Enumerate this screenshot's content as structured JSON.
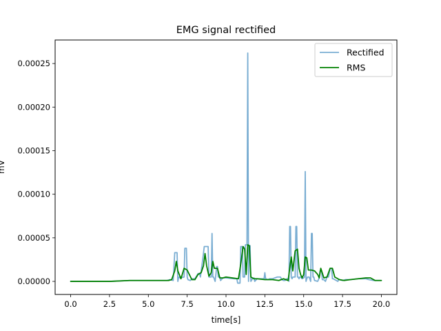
{
  "chart_data": {
    "type": "line",
    "title": "EMG signal rectified",
    "xlabel": "time[s]",
    "ylabel": "mV",
    "xlim": [
      -1.0,
      21.0
    ],
    "ylim": [
      -1.5e-05,
      0.000277
    ],
    "xticks": [
      0.0,
      2.5,
      5.0,
      7.5,
      10.0,
      12.5,
      15.0,
      17.5,
      20.0
    ],
    "xtick_labels": [
      "0.0",
      "2.5",
      "5.0",
      "7.5",
      "10.0",
      "12.5",
      "15.0",
      "17.5",
      "20.0"
    ],
    "yticks": [
      0.0,
      5e-05,
      0.0001,
      0.00015,
      0.0002,
      0.00025
    ],
    "ytick_labels": [
      "0.00000",
      "0.00005",
      "0.00010",
      "0.00015",
      "0.00020",
      "0.00025"
    ],
    "grid": false,
    "legend": {
      "location": "upper right",
      "entries": [
        "Rectified",
        "RMS"
      ]
    },
    "series": [
      {
        "name": "Rectified",
        "color": "#1f77b4",
        "alpha": 0.6,
        "x": [
          0.0,
          2.5,
          3.8,
          6.2,
          6.4,
          6.6,
          6.7,
          6.75,
          6.85,
          6.9,
          6.95,
          7.05,
          7.3,
          7.35,
          7.45,
          7.5,
          7.55,
          7.7,
          7.8,
          8.0,
          8.2,
          8.3,
          8.35,
          8.5,
          8.6,
          8.65,
          8.85,
          8.9,
          9.05,
          9.1,
          9.15,
          9.2,
          9.3,
          9.4,
          9.45,
          9.5,
          9.6,
          9.65,
          9.8,
          10.0,
          10.5,
          10.7,
          10.75,
          10.9,
          10.95,
          11.05,
          11.1,
          11.2,
          11.25,
          11.35,
          11.4,
          11.45,
          11.5,
          11.55,
          11.6,
          11.7,
          11.8,
          11.85,
          11.95,
          12.0,
          12.1,
          12.3,
          12.45,
          12.5,
          12.55,
          12.7,
          12.8,
          13.0,
          13.3,
          13.5,
          13.6,
          13.7,
          13.8,
          13.9,
          14.0,
          14.05,
          14.1,
          14.15,
          14.2,
          14.25,
          14.3,
          14.45,
          14.5,
          14.55,
          14.6,
          14.65,
          14.7,
          14.75,
          14.8,
          14.9,
          15.0,
          15.05,
          15.1,
          15.15,
          15.2,
          15.25,
          15.35,
          15.45,
          15.5,
          15.55,
          15.6,
          15.65,
          15.7,
          15.9,
          16.0,
          16.05,
          16.15,
          16.2,
          16.3,
          16.4,
          16.5,
          16.6,
          16.7,
          16.75,
          16.8,
          16.85,
          16.9,
          17.0,
          17.2,
          17.25,
          17.3,
          17.5,
          17.7,
          18.0,
          18.5,
          19.0,
          19.2,
          19.5,
          20.0
        ],
        "y": [
          0.0,
          0.0,
          1e-06,
          1e-06,
          2e-06,
          1e-06,
          3.3e-05,
          3.3e-05,
          3.3e-05,
          0.0,
          5e-06,
          4e-06,
          5e-06,
          3.8e-05,
          3.8e-05,
          5e-06,
          2e-06,
          1e-06,
          3e-06,
          3e-06,
          9e-06,
          9e-06,
          5e-06,
          2.5e-05,
          4e-05,
          4e-05,
          4e-05,
          5e-06,
          5e-06,
          5.5e-05,
          5e-06,
          5e-06,
          0.0,
          1.7e-05,
          1.7e-05,
          5e-06,
          5e-06,
          1e-06,
          4e-06,
          4e-06,
          3e-06,
          3e-06,
          -2e-06,
          -2e-06,
          4e-05,
          4e-05,
          5e-06,
          5e-06,
          4.2e-05,
          4.2e-05,
          0.000262,
          0.0,
          4.1e-05,
          4.1e-05,
          0.0,
          3e-06,
          4e-06,
          0.0,
          2e-06,
          3e-06,
          3e-06,
          3e-06,
          3e-06,
          1e-05,
          3e-06,
          2e-06,
          3e-06,
          3e-06,
          5e-06,
          5e-06,
          2e-06,
          1e-06,
          1e-06,
          3e-06,
          3e-06,
          0.0,
          6.3e-05,
          6.3e-05,
          5e-06,
          3e-06,
          5e-06,
          5e-06,
          6.3e-05,
          6.3e-05,
          5e-06,
          5e-06,
          3e-06,
          5e-06,
          5e-06,
          3e-06,
          4e-06,
          5e-06,
          0.000126,
          0.0,
          3e-06,
          5e-06,
          5e-06,
          0.0,
          5.5e-05,
          5.5e-05,
          5e-06,
          5e-06,
          1e-06,
          0.0,
          4e-06,
          1.2e-05,
          1.2e-05,
          2e-06,
          2e-06,
          0.0,
          5e-06,
          5e-06,
          1.5e-05,
          1.5e-05,
          1.5e-05,
          3e-06,
          3e-06,
          2e-06,
          0.0,
          2e-06,
          2e-06,
          1e-06,
          2e-06,
          2e-06,
          3e-06,
          3e-06,
          2e-06,
          1e-06,
          1e-06
        ]
      },
      {
        "name": "RMS",
        "color": "#008000",
        "x": [
          0.0,
          2.5,
          3.8,
          6.0,
          6.3,
          6.5,
          6.7,
          6.8,
          6.9,
          7.1,
          7.3,
          7.5,
          7.8,
          8.0,
          8.2,
          8.4,
          8.55,
          8.65,
          8.75,
          8.9,
          9.05,
          9.15,
          9.25,
          9.45,
          9.6,
          9.8,
          10.0,
          10.4,
          10.8,
          10.95,
          11.1,
          11.2,
          11.3,
          11.4,
          11.5,
          11.6,
          11.8,
          12.0,
          12.5,
          13.0,
          13.4,
          13.7,
          14.0,
          14.1,
          14.2,
          14.3,
          14.45,
          14.6,
          14.7,
          14.8,
          14.9,
          15.0,
          15.1,
          15.2,
          15.3,
          15.5,
          15.7,
          15.9,
          16.0,
          16.1,
          16.3,
          16.5,
          16.7,
          16.85,
          17.0,
          17.3,
          17.6,
          18.0,
          18.5,
          19.0,
          19.3,
          19.6,
          20.0
        ],
        "y": [
          0.0,
          0.0,
          1e-06,
          1e-06,
          1e-06,
          2e-06,
          1.2e-05,
          2.3e-05,
          1.2e-05,
          3e-06,
          1.5e-05,
          1.3e-05,
          2e-06,
          2e-06,
          8e-06,
          1e-05,
          1.8e-05,
          3.2e-05,
          1.8e-05,
          6e-06,
          1e-05,
          2.3e-05,
          1.5e-05,
          1.5e-05,
          4e-06,
          4e-06,
          5e-06,
          4e-06,
          3e-06,
          2e-05,
          4e-05,
          3.7e-05,
          8e-06,
          4.2e-05,
          4.1e-05,
          5e-06,
          3e-06,
          3e-06,
          2e-06,
          2e-06,
          1e-06,
          3e-06,
          1e-06,
          1.5e-05,
          2.8e-05,
          1.2e-05,
          3.5e-05,
          3.7e-05,
          1.5e-05,
          8e-06,
          4e-06,
          8e-06,
          2.8e-05,
          2.7e-05,
          1.3e-05,
          1.3e-05,
          1.2e-05,
          8e-06,
          4e-06,
          1.5e-05,
          4e-06,
          5e-06,
          1.5e-05,
          1.5e-05,
          5e-06,
          2e-06,
          1e-06,
          2e-06,
          3e-06,
          4e-06,
          4e-06,
          1e-06,
          1e-06
        ]
      }
    ]
  }
}
